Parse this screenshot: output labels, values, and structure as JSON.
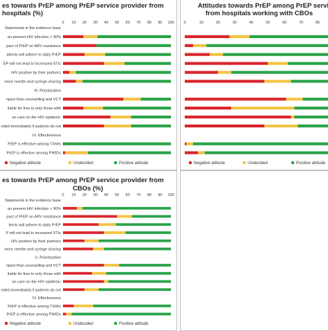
{
  "colors": {
    "negative": "#d9262c",
    "undecided": "#f2c443",
    "positive": "#2aa34a"
  },
  "chart_data": [
    {
      "type": "bar",
      "stacked": true,
      "orientation": "horizontal",
      "title_lines": [
        "es towards PrEP among PrEP service provider from",
        "hospitals (%)"
      ],
      "xlim": [
        0,
        100
      ],
      "xticks": [
        "0",
        "10",
        "20",
        "30",
        "40",
        "50",
        "60",
        "70",
        "80",
        "90",
        "100"
      ],
      "legend_placement": "bottom",
      "series_names": [
        "Negative attitude",
        "Undecided",
        "Positive attitude"
      ],
      "rows": [
        {
          "label": "Statements in the evidence base",
          "section": true
        },
        {
          "label": "an prevent HIV infection > 90%",
          "values": [
            19,
            13,
            68
          ]
        },
        {
          "label": "pact of PrEP on ARV resistance",
          "values": [
            31,
            0,
            69
          ]
        },
        {
          "label": "atients will adhere to daily PrEP",
          "values": [
            20,
            19,
            61
          ]
        },
        {
          "label": "EP will not lead to increased STIs",
          "values": [
            38,
            19,
            43
          ]
        },
        {
          "label": "HIV positive by their partners",
          "values": [
            6,
            6,
            88
          ]
        },
        {
          "label": "more needle and syringe sharing",
          "values": [
            12,
            6,
            82
          ]
        },
        {
          "label": "III. Prioritization",
          "section": true
        },
        {
          "label": "npact than counselling and VCT",
          "values": [
            56,
            16,
            28
          ]
        },
        {
          "label": "ilable for free to only those with",
          "values": [
            19,
            18,
            63
          ]
        },
        {
          "label": "an care on the HIV epidemic",
          "values": [
            44,
            19,
            37
          ]
        },
        {
          "label": "nded immediately if patients do not",
          "values": [
            38,
            25,
            37
          ]
        },
        {
          "label": "IV. Effectiveness",
          "section": true
        },
        {
          "label": "PrEP is effective among TGWs",
          "values": [
            1,
            0,
            99
          ]
        },
        {
          "label": "PrEP is effective among PWIDs",
          "values": [
            2,
            21,
            77
          ]
        }
      ]
    },
    {
      "type": "bar",
      "stacked": true,
      "orientation": "horizontal",
      "title_lines": [
        "Attitudes towards PrEP among PrEP servi",
        "from hospitals working with CBOs"
      ],
      "xlim": [
        0,
        100
      ],
      "xticks": [
        "0",
        "10",
        "20",
        "30",
        "40",
        "50",
        "60",
        "70",
        "80"
      ],
      "legend_placement": "bottom",
      "series_names": [
        "Negative attitude",
        "Undecided",
        "Positive attitude"
      ],
      "rows": [
        {
          "section": true
        },
        {
          "values": [
            27,
            12,
            61
          ]
        },
        {
          "values": [
            5,
            8,
            87
          ]
        },
        {
          "values": [
            15,
            8,
            77
          ]
        },
        {
          "values": [
            50,
            12,
            38
          ]
        },
        {
          "values": [
            20,
            8,
            72
          ]
        },
        {
          "values": [
            48,
            16,
            36
          ]
        },
        {
          "section": true
        },
        {
          "values": [
            61,
            10,
            29
          ]
        },
        {
          "values": [
            28,
            38,
            34
          ]
        },
        {
          "values": [
            64,
            2,
            34
          ]
        },
        {
          "values": [
            48,
            20,
            32
          ]
        },
        {
          "section": true
        },
        {
          "values": [
            1,
            4,
            95
          ]
        },
        {
          "values": [
            8,
            4,
            88
          ]
        }
      ]
    },
    {
      "type": "bar",
      "stacked": true,
      "orientation": "horizontal",
      "title_lines": [
        "es towards PrEP among PrEP service provider from",
        "CBOs (%)"
      ],
      "xlim": [
        0,
        100
      ],
      "xticks": [
        "0",
        "10",
        "20",
        "30",
        "40",
        "50",
        "60",
        "70",
        "80",
        "90",
        "100"
      ],
      "legend_placement": "bottom",
      "series_names": [
        "Negative attitude",
        "Undecided",
        "Positive attitude"
      ],
      "rows": [
        {
          "label": "Statements in the evidence base",
          "section": true
        },
        {
          "label": "an prevent HIV infection > 90%",
          "values": [
            13,
            5,
            82
          ]
        },
        {
          "label": "pact of PrEP on ARV resistance",
          "values": [
            50,
            14,
            36
          ]
        },
        {
          "label": "tients will adhere to daily PrEP",
          "values": [
            33,
            16,
            51
          ]
        },
        {
          "label": "P will not lead to increased STIs",
          "values": [
            38,
            20,
            42
          ]
        },
        {
          "label": "HIV positive by their partners",
          "values": [
            20,
            13,
            67
          ]
        },
        {
          "label": "more needle and syringe sharing",
          "values": [
            28,
            10,
            62
          ]
        },
        {
          "label": "II. Prioritization",
          "section": true
        },
        {
          "label": "npact than counselling and VCT",
          "values": [
            38,
            14,
            48
          ]
        },
        {
          "label": "ilable for free to only those with",
          "values": [
            27,
            13,
            60
          ]
        },
        {
          "label": "an care on the HIV epidemic",
          "values": [
            38,
            4,
            58
          ]
        },
        {
          "label": "nded immediately if patients do not",
          "values": [
            20,
            13,
            67
          ]
        },
        {
          "label": "IV. Effectiveness",
          "section": true
        },
        {
          "label": "PrEP is effective among TGWs",
          "values": [
            10,
            18,
            72
          ]
        },
        {
          "label": "PrEP is effective among PWIDs",
          "values": [
            3,
            5,
            92
          ]
        }
      ]
    }
  ]
}
